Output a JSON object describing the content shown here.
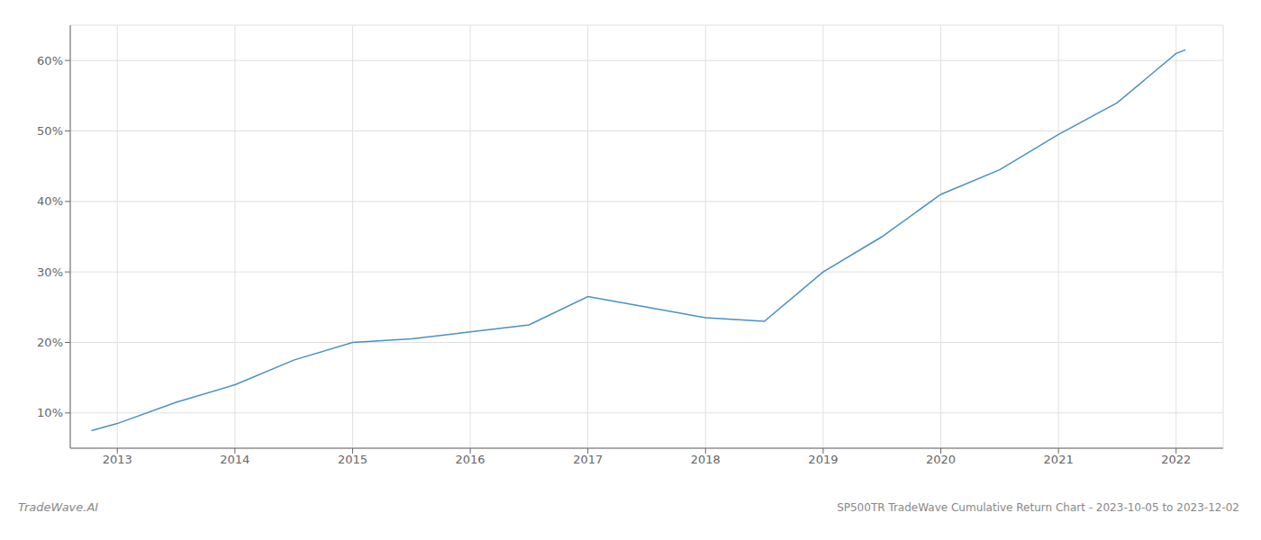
{
  "chart_data": {
    "type": "line",
    "title": "SP500TR TradeWave Cumulative Return Chart - 2023-10-05 to 2023-12-02",
    "annotations": [
      "TradeWave.AI"
    ],
    "x": [
      2012.78,
      2013.0,
      2013.5,
      2014.0,
      2014.5,
      2015.0,
      2015.5,
      2016.0,
      2016.5,
      2017.0,
      2017.5,
      2018.0,
      2018.5,
      2019.0,
      2019.5,
      2020.0,
      2020.5,
      2021.0,
      2021.5,
      2022.0,
      2022.08
    ],
    "values": [
      7.5,
      8.5,
      11.5,
      14.0,
      17.5,
      20.0,
      20.5,
      21.5,
      22.5,
      26.5,
      25.0,
      23.5,
      23.0,
      30.0,
      35.0,
      41.0,
      44.5,
      49.5,
      54.0,
      61.0,
      61.5
    ],
    "color": "#4a90c4",
    "xlim": [
      2012.6,
      2022.4
    ],
    "ylim": [
      5,
      65
    ],
    "xticks": [
      2013,
      2014,
      2015,
      2016,
      2017,
      2018,
      2019,
      2020,
      2021,
      2022
    ],
    "yticks": [
      {
        "value": 10,
        "label": "10%"
      },
      {
        "value": 20,
        "label": "20%"
      },
      {
        "value": 30,
        "label": "30%"
      },
      {
        "value": 40,
        "label": "40%"
      },
      {
        "value": 50,
        "label": "50%"
      },
      {
        "value": 60,
        "label": "60%"
      }
    ],
    "grid": true
  }
}
